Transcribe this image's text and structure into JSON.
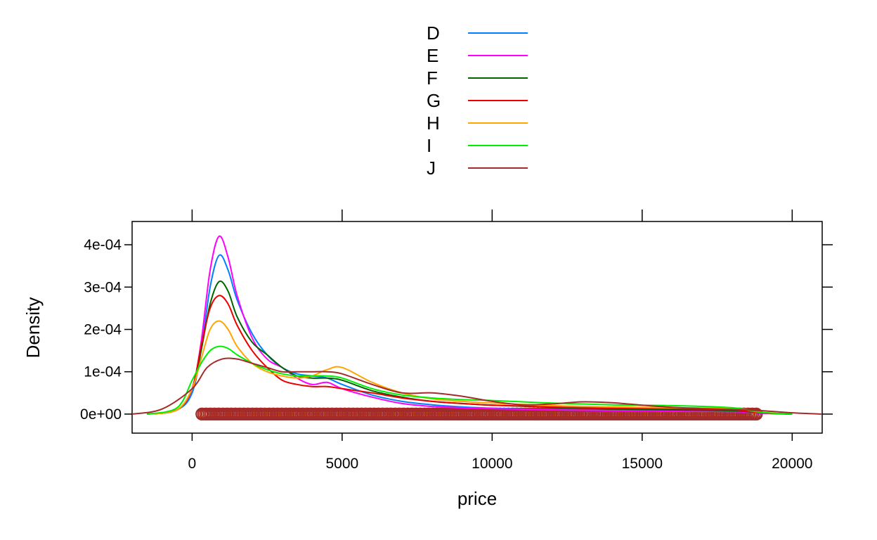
{
  "chart_data": {
    "type": "line",
    "title": "",
    "xlabel": "price",
    "ylabel": "Density",
    "xlim": [
      -2000,
      21000
    ],
    "ylim": [
      -4.5e-05,
      0.000455
    ],
    "x_ticks": [
      0,
      5000,
      10000,
      15000,
      20000
    ],
    "x_tick_labels": [
      "0",
      "5000",
      "10000",
      "15000",
      "20000"
    ],
    "y_ticks": [
      0,
      0.0001,
      0.0002,
      0.0003,
      0.0004
    ],
    "y_tick_labels": [
      "0e+00",
      "1e-04",
      "2e-04",
      "3e-04",
      "4e-04"
    ],
    "grid": false,
    "legend_position": "top",
    "rug": {
      "y": 0,
      "x_range": [
        326,
        18823
      ]
    },
    "series": [
      {
        "name": "D",
        "color": "#0080ff",
        "x": [
          -1500,
          -500,
          0,
          300,
          600,
          900,
          1200,
          1500,
          2000,
          2500,
          3000,
          3500,
          4000,
          4500,
          5000,
          6000,
          7000,
          8000,
          9000,
          10000,
          12000,
          14000,
          16000,
          18000,
          19000,
          20000
        ],
        "y": [
          0,
          1e-05,
          5e-05,
          0.00015,
          0.0003,
          0.000375,
          0.00034,
          0.00027,
          0.00019,
          0.00014,
          0.00011,
          9.5e-05,
          9e-05,
          8.5e-05,
          7e-05,
          4.5e-05,
          3e-05,
          2.2e-05,
          1.7e-05,
          1.4e-05,
          1e-05,
          8e-06,
          7e-06,
          6e-06,
          2e-06,
          0
        ]
      },
      {
        "name": "E",
        "color": "#ff00ff",
        "x": [
          -1500,
          -500,
          0,
          300,
          600,
          900,
          1200,
          1500,
          2000,
          2500,
          3000,
          3500,
          4000,
          4500,
          5000,
          6000,
          7000,
          8000,
          9000,
          10000,
          12000,
          14000,
          16000,
          18000,
          19000,
          20000
        ],
        "y": [
          0,
          1e-05,
          6e-05,
          0.00017,
          0.00034,
          0.00042,
          0.00037,
          0.00028,
          0.00018,
          0.00013,
          0.00011,
          8.5e-05,
          7e-05,
          7.5e-05,
          6e-05,
          4e-05,
          2.5e-05,
          1.8e-05,
          1.5e-05,
          1.3e-05,
          1e-05,
          8e-06,
          7e-06,
          6e-06,
          2e-06,
          0
        ]
      },
      {
        "name": "F",
        "color": "#006400",
        "x": [
          -1500,
          -500,
          0,
          300,
          600,
          900,
          1200,
          1500,
          2000,
          2500,
          3000,
          3500,
          4000,
          4500,
          5000,
          6000,
          7000,
          8000,
          9000,
          10000,
          12000,
          14000,
          16000,
          18000,
          19000,
          20000
        ],
        "y": [
          0,
          1e-05,
          6e-05,
          0.00015,
          0.00026,
          0.000313,
          0.00029,
          0.00023,
          0.00017,
          0.00014,
          0.00011,
          9e-05,
          8.5e-05,
          8.5e-05,
          8e-05,
          5.5e-05,
          4e-05,
          3e-05,
          2.5e-05,
          2.1e-05,
          1.6e-05,
          1.2e-05,
          1e-05,
          8e-06,
          3e-06,
          0
        ]
      },
      {
        "name": "G",
        "color": "#ee0000",
        "x": [
          -1500,
          -500,
          0,
          300,
          600,
          900,
          1200,
          1500,
          2000,
          2500,
          3000,
          3500,
          4000,
          4500,
          5000,
          6000,
          7000,
          8000,
          9000,
          10000,
          12000,
          14000,
          16000,
          18000,
          19000,
          20000
        ],
        "y": [
          0,
          1e-05,
          6e-05,
          0.00016,
          0.00025,
          0.00028,
          0.00026,
          0.00021,
          0.00015,
          0.00011,
          8e-05,
          7e-05,
          6.5e-05,
          6.5e-05,
          6e-05,
          5e-05,
          3.8e-05,
          3e-05,
          2.5e-05,
          2.1e-05,
          1.7e-05,
          1.4e-05,
          1.3e-05,
          1e-05,
          3e-06,
          0
        ]
      },
      {
        "name": "H",
        "color": "#ffa500",
        "x": [
          -1500,
          -500,
          0,
          300,
          600,
          900,
          1200,
          1500,
          2000,
          2500,
          3000,
          3500,
          4000,
          4500,
          5000,
          6000,
          7000,
          8000,
          9000,
          10000,
          12000,
          14000,
          16000,
          18000,
          19000,
          20000
        ],
        "y": [
          0,
          1e-05,
          6e-05,
          0.00013,
          0.0002,
          0.00022,
          0.0002,
          0.00016,
          0.00012,
          0.0001,
          9e-05,
          8.5e-05,
          9e-05,
          0.000105,
          0.00011,
          7.5e-05,
          5e-05,
          3.6e-05,
          3e-05,
          2.6e-05,
          2e-05,
          1.7e-05,
          1.5e-05,
          1.3e-05,
          4e-06,
          0
        ]
      },
      {
        "name": "I",
        "color": "#00ee00",
        "x": [
          -1500,
          -500,
          0,
          300,
          600,
          900,
          1200,
          1500,
          2000,
          2500,
          3000,
          3500,
          4000,
          4500,
          5000,
          6000,
          7000,
          8000,
          9000,
          10000,
          12000,
          14000,
          16000,
          18000,
          19000,
          20000
        ],
        "y": [
          0,
          1.5e-05,
          8e-05,
          0.00012,
          0.00015,
          0.00016,
          0.000155,
          0.00014,
          0.00012,
          0.000105,
          9.5e-05,
          9e-05,
          9e-05,
          9e-05,
          8.5e-05,
          6e-05,
          4.5e-05,
          3.8e-05,
          3.4e-05,
          3.2e-05,
          2.6e-05,
          2.2e-05,
          2e-05,
          1.5e-05,
          4e-06,
          0
        ]
      },
      {
        "name": "J",
        "color": "#a52a2a",
        "x": [
          -2000,
          -1000,
          0,
          500,
          1000,
          1500,
          2000,
          2500,
          3000,
          3500,
          4000,
          4500,
          5000,
          6000,
          7000,
          8000,
          9000,
          10000,
          11000,
          12000,
          13000,
          14000,
          15000,
          16000,
          17000,
          18000,
          19000,
          20000,
          21000
        ],
        "y": [
          0,
          1.2e-05,
          6e-05,
          0.00011,
          0.00013,
          0.00013,
          0.00012,
          0.00011,
          0.0001,
          0.0001,
          0.0001,
          0.0001,
          9.5e-05,
          7e-05,
          5e-05,
          5e-05,
          4.2e-05,
          3e-05,
          2.2e-05,
          2.4e-05,
          2.9e-05,
          2.7e-05,
          2.1e-05,
          1.6e-05,
          1.3e-05,
          1.1e-05,
          8e-06,
          3e-06,
          0
        ]
      }
    ]
  }
}
